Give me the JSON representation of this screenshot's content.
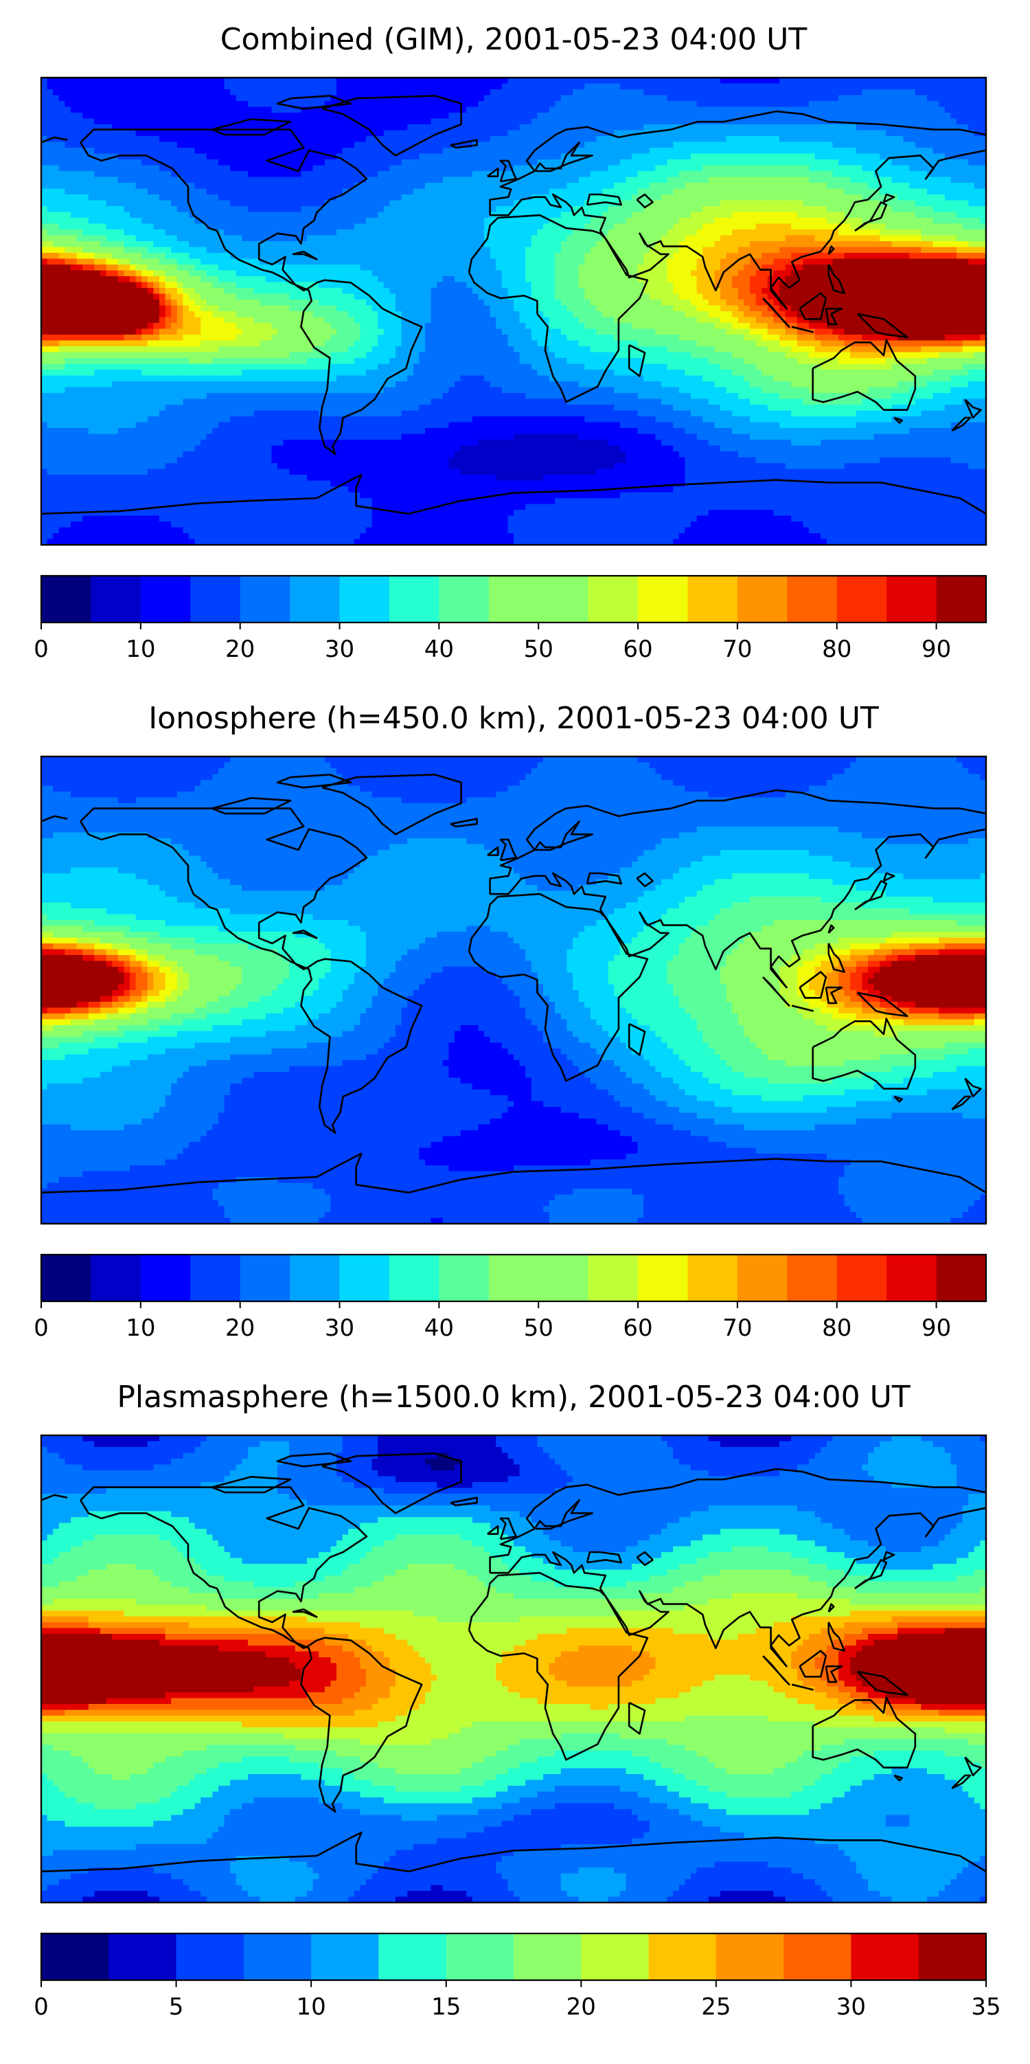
{
  "chart_data": [
    {
      "type": "heatmap",
      "title": "Combined (GIM), 2001-05-23 04:00 UT",
      "colorbar": {
        "min": 0,
        "max": 95,
        "step": 5,
        "ticks": [
          0,
          10,
          20,
          30,
          40,
          50,
          60,
          70,
          80,
          90
        ],
        "tick_labels": [
          "0",
          "10",
          "20",
          "30",
          "40",
          "50",
          "60",
          "70",
          "80",
          "90"
        ]
      },
      "blobs": [
        {
          "lon": -170,
          "lat": 5,
          "sx": 30,
          "sy": 10,
          "value": 62
        },
        {
          "lon": -150,
          "lat": 0,
          "sx": 10,
          "sy": 6,
          "value": 38
        },
        {
          "lon": -120,
          "lat": -10,
          "sx": 35,
          "sy": 9,
          "value": 28
        },
        {
          "lon": 150,
          "lat": 5,
          "sx": 40,
          "sy": 12,
          "value": 65
        },
        {
          "lon": 160,
          "lat": 2,
          "sx": 15,
          "sy": 6,
          "value": 25
        },
        {
          "lon": 110,
          "lat": 20,
          "sx": 55,
          "sy": 25,
          "value": 25
        },
        {
          "lon": 80,
          "lat": 25,
          "sx": 60,
          "sy": 30,
          "value": 18
        },
        {
          "lon": 130,
          "lat": -25,
          "sx": 30,
          "sy": 15,
          "value": 18
        },
        {
          "lon": -60,
          "lat": -5,
          "sx": 35,
          "sy": 18,
          "value": 10
        },
        {
          "lon": -20,
          "lat": -10,
          "sx": 20,
          "sy": 25,
          "value": -10
        },
        {
          "lon": 0,
          "lat": -55,
          "sx": 60,
          "sy": 12,
          "value": -12
        },
        {
          "lon": -100,
          "lat": 65,
          "sx": 60,
          "sy": 15,
          "value": -6
        }
      ],
      "base": 15
    },
    {
      "type": "heatmap",
      "title": "Ionosphere  (h=450.0 km), 2001-05-23 04:00 UT",
      "colorbar": {
        "min": 0,
        "max": 95,
        "step": 5,
        "ticks": [
          0,
          10,
          20,
          30,
          40,
          50,
          60,
          70,
          80,
          90
        ],
        "tick_labels": [
          "0",
          "10",
          "20",
          "30",
          "40",
          "50",
          "60",
          "70",
          "80",
          "90"
        ]
      },
      "blobs": [
        {
          "lon": -175,
          "lat": 5,
          "sx": 25,
          "sy": 9,
          "value": 42
        },
        {
          "lon": -150,
          "lat": 0,
          "sx": 35,
          "sy": 12,
          "value": 18
        },
        {
          "lon": 165,
          "lat": 3,
          "sx": 35,
          "sy": 10,
          "value": 42
        },
        {
          "lon": 120,
          "lat": 10,
          "sx": 55,
          "sy": 25,
          "value": 22
        },
        {
          "lon": 120,
          "lat": -25,
          "sx": 40,
          "sy": 15,
          "value": 12
        },
        {
          "lon": -90,
          "lat": 15,
          "sx": 30,
          "sy": 12,
          "value": 8
        },
        {
          "lon": -10,
          "lat": -15,
          "sx": 30,
          "sy": 25,
          "value": -12
        },
        {
          "lon": -60,
          "lat": -35,
          "sx": 60,
          "sy": 10,
          "value": -6
        },
        {
          "lon": 0,
          "lat": -60,
          "sx": 90,
          "sy": 10,
          "value": -8
        }
      ],
      "base": 18
    },
    {
      "type": "heatmap",
      "title": "Plasmasphere (h=1500.0 km), 2001-05-23 04:00 UT",
      "colorbar": {
        "min": 0,
        "max": 35,
        "step": 2.5,
        "ticks": [
          0,
          5,
          10,
          15,
          20,
          25,
          30,
          35
        ],
        "tick_labels": [
          "0",
          "5",
          "10",
          "15",
          "20",
          "25",
          "30",
          "35"
        ]
      },
      "blobs": [
        {
          "lon": -150,
          "lat": 0,
          "sx": 35,
          "sy": 12,
          "value": 21
        },
        {
          "lon": -70,
          "lat": -5,
          "sx": 35,
          "sy": 18,
          "value": 7
        },
        {
          "lon": 0,
          "lat": 0,
          "sx": 90,
          "sy": 18,
          "value": 5
        },
        {
          "lon": 170,
          "lat": 0,
          "sx": 25,
          "sy": 10,
          "value": 17
        },
        {
          "lon": 120,
          "lat": 5,
          "sx": 50,
          "sy": 18,
          "value": 7
        },
        {
          "lon": -20,
          "lat": 75,
          "sx": 40,
          "sy": 8,
          "value": -5
        },
        {
          "lon": 0,
          "lat": -60,
          "sx": 70,
          "sy": 10,
          "value": -5
        },
        {
          "lon": 90,
          "lat": 55,
          "sx": 70,
          "sy": 12,
          "value": -3
        }
      ],
      "base": 7
    }
  ],
  "colormap": [
    "#00007f",
    "#0000c8",
    "#0000ff",
    "#0040ff",
    "#0070ff",
    "#00a4ff",
    "#00d8ff",
    "#26ffd0",
    "#5aff9c",
    "#8cff6a",
    "#bfff37",
    "#f1fc06",
    "#ffc400",
    "#ff9400",
    "#ff6300",
    "#ff2e00",
    "#e30000",
    "#9e0000"
  ]
}
